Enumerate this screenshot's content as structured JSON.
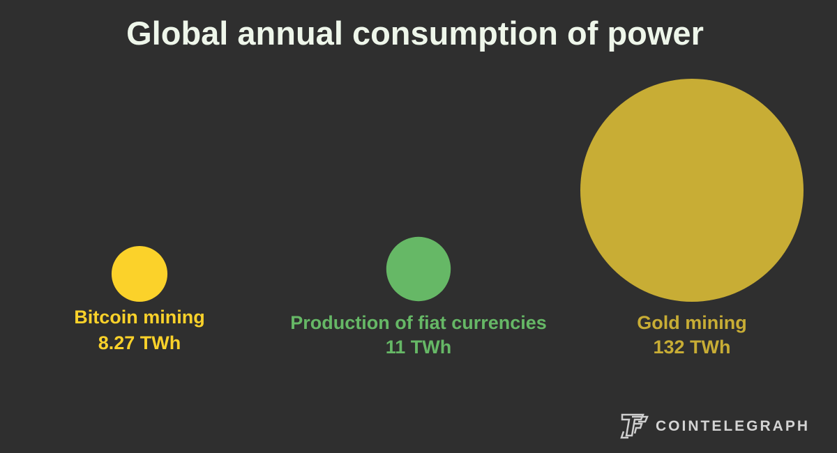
{
  "chart_data": {
    "type": "bubble",
    "title": "Global annual consumption of power",
    "unit": "TWh",
    "series": [
      {
        "name": "Bitcoin mining",
        "value": 8.27,
        "value_label": "8.27 TWh",
        "color": "#fbd22a"
      },
      {
        "name": "Production of fiat currencies",
        "value": 11,
        "value_label": "11 TWh",
        "color": "#66b866"
      },
      {
        "name": "Gold mining",
        "value": 132,
        "value_label": "132 TWh",
        "color": "#c8ad35"
      }
    ]
  },
  "branding": {
    "logo_text": "COINTELEGRAPH",
    "logo_icon": "cointelegraph-logo-icon"
  }
}
